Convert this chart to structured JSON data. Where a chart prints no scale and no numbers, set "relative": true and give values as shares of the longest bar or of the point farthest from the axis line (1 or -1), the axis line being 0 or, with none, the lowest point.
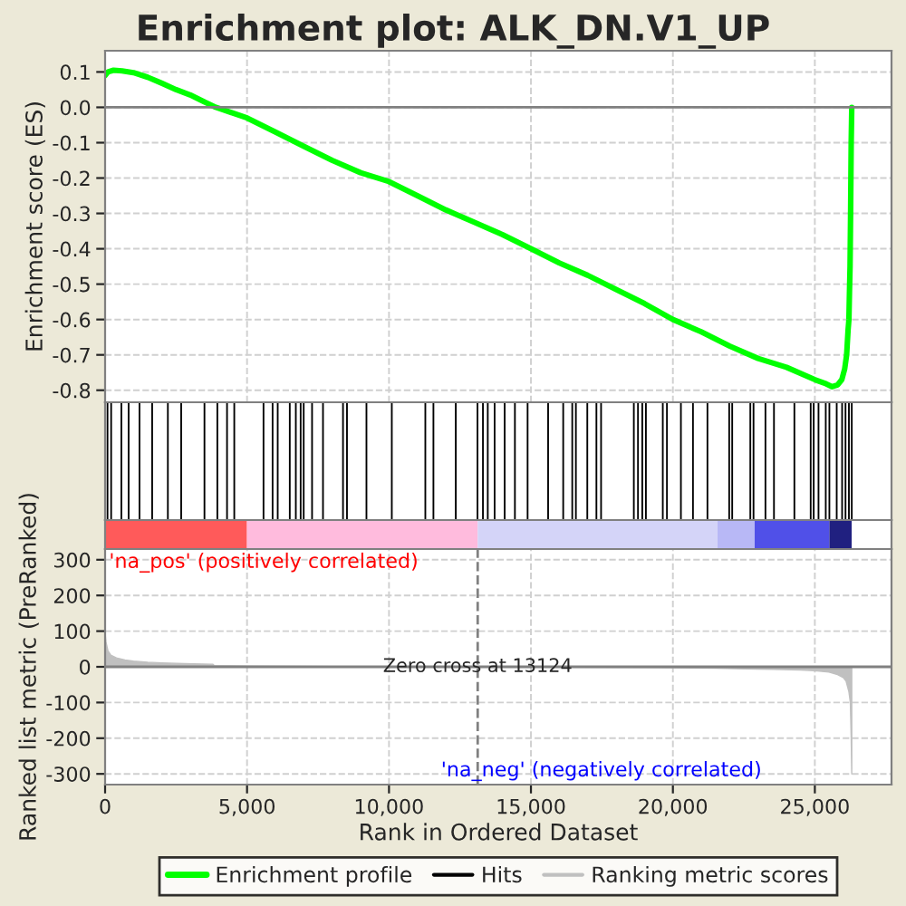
{
  "chart_data": [
    {
      "type": "line",
      "title": "Enrichment plot: ALK_DN.V1_UP",
      "ylabel": "Enrichment score (ES)",
      "series": [
        {
          "name": "Enrichment profile",
          "color": "#00ff00",
          "x": [
            0,
            100,
            300,
            600,
            1000,
            1500,
            2000,
            2500,
            3000,
            3500,
            3900,
            5000,
            6000,
            7000,
            8000,
            9000,
            10000,
            11000,
            12000,
            13000,
            14000,
            15000,
            16000,
            17000,
            18000,
            19000,
            20000,
            21000,
            22000,
            23000,
            24000,
            25000,
            25400,
            25600,
            25800,
            25950,
            26050,
            26120,
            26170,
            26200,
            26220,
            26240,
            26260,
            26280,
            26300
          ],
          "values": [
            0.09,
            0.1,
            0.105,
            0.103,
            0.098,
            0.085,
            0.068,
            0.05,
            0.035,
            0.015,
            0.0,
            -0.03,
            -0.07,
            -0.11,
            -0.15,
            -0.185,
            -0.21,
            -0.25,
            -0.29,
            -0.325,
            -0.36,
            -0.4,
            -0.44,
            -0.475,
            -0.515,
            -0.555,
            -0.6,
            -0.635,
            -0.675,
            -0.71,
            -0.735,
            -0.77,
            -0.782,
            -0.79,
            -0.785,
            -0.77,
            -0.74,
            -0.7,
            -0.63,
            -0.6,
            -0.52,
            -0.45,
            -0.29,
            -0.1,
            0.0
          ]
        }
      ],
      "xlim": [
        0,
        27700
      ],
      "xticks": [
        0,
        5000,
        10000,
        15000,
        20000,
        25000
      ],
      "ylim": [
        -0.834,
        0.16
      ],
      "yticks": [
        {
          "value": 0.1,
          "label": "0.1"
        },
        {
          "value": 0.0,
          "label": "0.0"
        },
        {
          "value": -0.1,
          "label": "-0.1"
        },
        {
          "value": -0.2,
          "label": "-0.2"
        },
        {
          "value": -0.3,
          "label": "-0.3"
        },
        {
          "value": -0.4,
          "label": "-0.4"
        },
        {
          "value": -0.5,
          "label": "-0.5"
        },
        {
          "value": -0.6,
          "label": "-0.6"
        },
        {
          "value": -0.7,
          "label": "-0.7"
        },
        {
          "value": -0.8,
          "label": "-0.8"
        }
      ],
      "ref_lines": [
        {
          "axis": "y",
          "value": 0,
          "color": "#808080"
        }
      ],
      "grid": true,
      "tick_labels": "y",
      "legend": "bottom"
    },
    {
      "type": "bar",
      "relative": true,
      "series": [
        {
          "name": "Hits",
          "color": "#000000",
          "x": [
            85,
            213,
            574,
            829,
            1212,
            1658,
            2211,
            2680,
            3500,
            3954,
            4295,
            4550,
            5580,
            5900,
            6080,
            6505,
            6718,
            6888,
            6995,
            7290,
            7675,
            8380,
            8520,
            9206,
            10099,
            11280,
            11565,
            12352,
            13117,
            13309,
            13479,
            13720,
            14074,
            14435,
            14882,
            15605,
            16136,
            16455,
            16583,
            16985,
            17306,
            17470,
            18624,
            18770,
            18921,
            19049,
            19644,
            19790,
            20282,
            20707,
            21217,
            21983,
            22089,
            22727,
            22840,
            23260,
            23560,
            24279,
            24853,
            24959,
            25129,
            25384,
            25512,
            25770,
            25960,
            26080,
            26200,
            26300
          ],
          "values": [
            1,
            1,
            1,
            1,
            1,
            1,
            1,
            1,
            1,
            1,
            1,
            1,
            1,
            1,
            1,
            1,
            1,
            1,
            1,
            1,
            1,
            1,
            1,
            1,
            1,
            1,
            1,
            1,
            1,
            1,
            1,
            1,
            1,
            1,
            1,
            1,
            1,
            1,
            1,
            1,
            1,
            1,
            1,
            1,
            1,
            1,
            1,
            1,
            1,
            1,
            1,
            1,
            1,
            1,
            1,
            1,
            1,
            1,
            1,
            1,
            1,
            1,
            1,
            1,
            1,
            1,
            1,
            1
          ]
        }
      ],
      "xlim": [
        0,
        27700
      ],
      "tick_labels": false
    },
    {
      "type": "area",
      "xlabel": "Rank in Ordered Dataset",
      "ylabel": "Ranked list metric (PreRanked)",
      "series": [
        {
          "name": "Ranking metric scores",
          "color": "#c0c0c0",
          "x": [
            0,
            30,
            100,
            200,
            400,
            700,
            1000,
            1500,
            2000,
            2800,
            3800,
            3850,
            5000,
            8000,
            10000,
            13124,
            16000,
            19000,
            21500,
            22500,
            23500,
            24500,
            25000,
            25500,
            25800,
            26000,
            26100,
            26200,
            26250,
            26280,
            26290,
            26300
          ],
          "values": [
            95,
            70,
            45,
            33,
            25,
            19,
            16,
            13,
            11,
            9,
            7,
            3,
            2,
            1,
            1,
            0,
            -1,
            -2,
            -4,
            -6,
            -7,
            -9,
            -11,
            -15,
            -22,
            -30,
            -40,
            -70,
            -100,
            -200,
            -250,
            -300
          ]
        }
      ],
      "xlim": [
        0,
        27700
      ],
      "xticks": [
        {
          "value": 0,
          "label": "0"
        },
        {
          "value": 5000,
          "label": "5,000"
        },
        {
          "value": 10000,
          "label": "10,000"
        },
        {
          "value": 15000,
          "label": "15,000"
        },
        {
          "value": 20000,
          "label": "20,000"
        },
        {
          "value": 25000,
          "label": "25,000"
        }
      ],
      "ylim": [
        -330,
        330
      ],
      "yticks": [
        300,
        200,
        100,
        0,
        -100,
        -200,
        -300
      ],
      "ref_lines": [
        {
          "axis": "x",
          "value": 13124,
          "label": "Zero cross at 13124",
          "color": "#808080",
          "line_style": "dashed"
        },
        {
          "axis": "y",
          "value": 0,
          "color": "#808080"
        }
      ],
      "annotations": [
        "'na_pos' (positively correlated)",
        "'na_neg' (negatively correlated)"
      ],
      "grid": true
    }
  ]
}
